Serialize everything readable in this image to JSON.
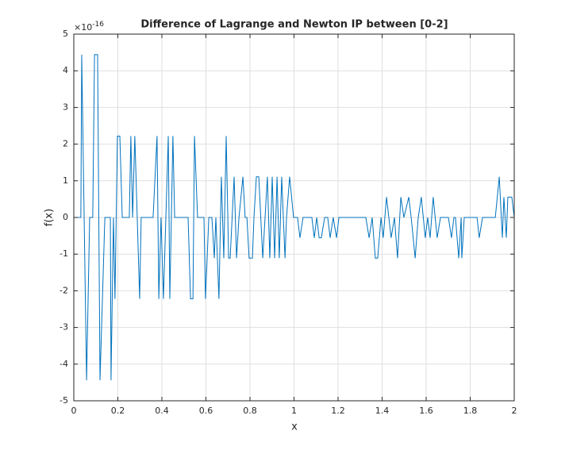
{
  "chart_data": {
    "type": "line",
    "title": "Difference of Lagrange and Newton IP between [0-2]",
    "x_label": "x",
    "y_label": "f(x)",
    "y_multiplier": {
      "base": "×10",
      "exponent": "-16"
    },
    "xlim": [
      0,
      2
    ],
    "ylim": [
      -5,
      5
    ],
    "xticks": [
      0,
      0.2,
      0.4,
      0.6,
      0.8,
      1,
      1.2,
      1.4,
      1.6,
      1.8,
      2
    ],
    "yticks": [
      -5,
      -4,
      -3,
      -2,
      -1,
      0,
      1,
      2,
      3,
      4,
      5
    ],
    "grid": true,
    "x": [
      0,
      0.032,
      0.036,
      0.058,
      0.072,
      0.086,
      0.094,
      0.108,
      0.119,
      0.141,
      0.166,
      0.169,
      0.18,
      0.187,
      0.198,
      0.209,
      0.22,
      0.252,
      0.259,
      0.267,
      0.277,
      0.299,
      0.306,
      0.36,
      0.378,
      0.386,
      0.396,
      0.407,
      0.429,
      0.436,
      0.45,
      0.458,
      0.519,
      0.53,
      0.541,
      0.548,
      0.562,
      0.591,
      0.598,
      0.613,
      0.627,
      0.638,
      0.645,
      0.659,
      0.67,
      0.681,
      0.692,
      0.703,
      0.71,
      0.728,
      0.739,
      0.75,
      0.768,
      0.778,
      0.786,
      0.796,
      0.811,
      0.818,
      0.829,
      0.84,
      0.858,
      0.879,
      0.89,
      0.901,
      0.912,
      0.923,
      0.933,
      0.944,
      0.959,
      0.966,
      0.98,
      0.998,
      1.016,
      1.027,
      1.041,
      1.081,
      1.092,
      1.103,
      1.114,
      1.124,
      1.139,
      1.153,
      1.164,
      1.178,
      1.193,
      1.204,
      1.326,
      1.341,
      1.355,
      1.369,
      1.38,
      1.395,
      1.405,
      1.42,
      1.441,
      1.456,
      1.47,
      1.485,
      1.499,
      1.521,
      1.532,
      1.55,
      1.564,
      1.578,
      1.596,
      1.607,
      1.618,
      1.632,
      1.65,
      1.665,
      1.701,
      1.715,
      1.726,
      1.733,
      1.748,
      1.759,
      1.762,
      1.773,
      1.831,
      1.841,
      1.856,
      1.914,
      1.932,
      1.946,
      1.953,
      1.964,
      1.971,
      1.989,
      2
    ],
    "series": [
      {
        "color": "#0072bd",
        "values": [
          0,
          0,
          4.44,
          -4.44,
          0,
          0,
          4.44,
          4.44,
          -4.44,
          0,
          0,
          -4.44,
          0,
          -2.22,
          2.22,
          2.22,
          0,
          0,
          2.22,
          0,
          2.22,
          -2.22,
          0,
          0,
          2.22,
          -2.22,
          0,
          -2.22,
          2.22,
          -2.22,
          2.22,
          0,
          0,
          -2.22,
          -2.22,
          2.22,
          0,
          0,
          -2.22,
          0,
          0,
          -1.11,
          0,
          -2.22,
          1.11,
          -1.11,
          2.22,
          -1.11,
          -1.11,
          1.11,
          -1.11,
          0,
          1.11,
          0,
          0,
          -1.11,
          -1.11,
          0,
          1.11,
          1.11,
          -1.11,
          1.11,
          -1.11,
          1.11,
          -1.11,
          1.11,
          -1.11,
          1.11,
          -1.11,
          0,
          1.11,
          0,
          0,
          -0.555,
          0,
          0,
          -0.555,
          0,
          -0.555,
          -0.555,
          0,
          0,
          -0.555,
          0,
          -0.555,
          0,
          0,
          -0.555,
          0,
          -1.11,
          -1.11,
          0,
          -0.555,
          0.555,
          -0.555,
          0,
          -1.11,
          0.555,
          0,
          0.555,
          0,
          -1.11,
          0,
          0.555,
          -0.555,
          0,
          -0.555,
          0.555,
          -0.555,
          0,
          0,
          -0.555,
          0,
          0,
          -1.11,
          0,
          -1.11,
          0,
          0,
          -0.555,
          0,
          0,
          1.11,
          -0.555,
          0.555,
          -0.555,
          0.555,
          0.555,
          0
        ]
      }
    ]
  }
}
